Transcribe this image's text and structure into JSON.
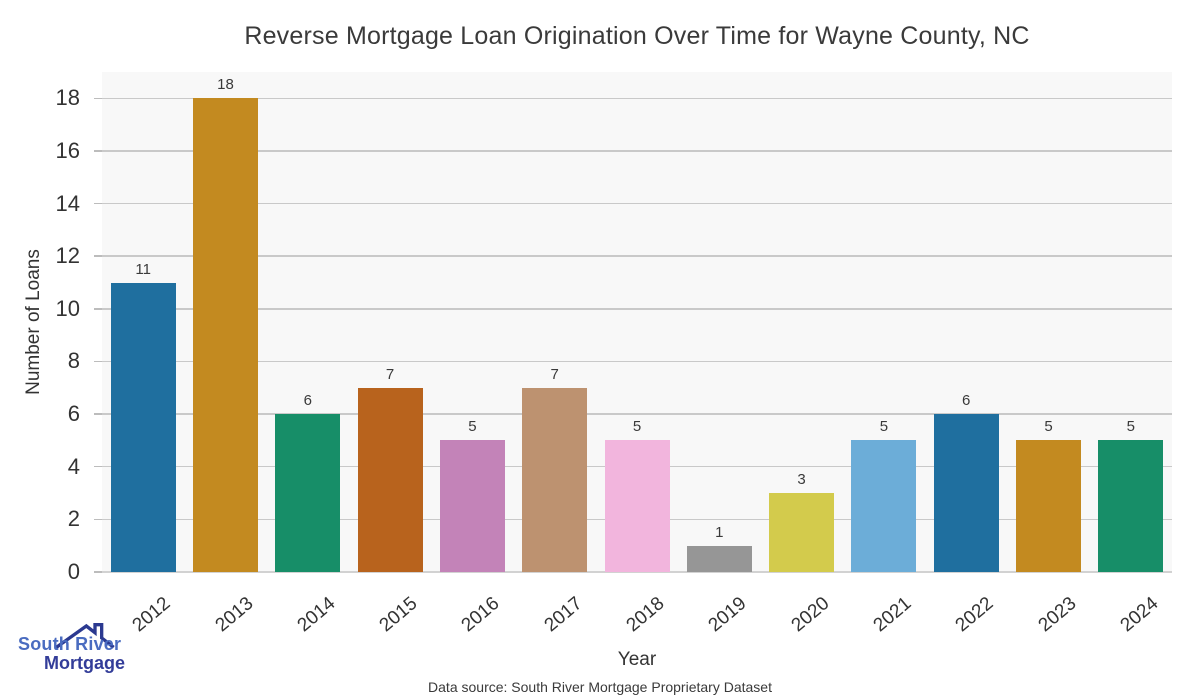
{
  "chart_data": {
    "type": "bar",
    "title": "Reverse Mortgage Loan Origination Over Time for Wayne County, NC",
    "xlabel": "Year",
    "ylabel": "Number of Loans",
    "categories": [
      "2012",
      "2013",
      "2014",
      "2015",
      "2016",
      "2017",
      "2018",
      "2019",
      "2020",
      "2021",
      "2022",
      "2023",
      "2024"
    ],
    "values": [
      11,
      18,
      6,
      7,
      5,
      7,
      5,
      1,
      3,
      5,
      6,
      5,
      5
    ],
    "bar_colors": [
      "#1f6f9f",
      "#c38a20",
      "#178e68",
      "#b8631d",
      "#c383b8",
      "#bd9270",
      "#f2b5dd",
      "#969696",
      "#d3cb4c",
      "#6cadd8",
      "#1f6f9f",
      "#c38a20",
      "#178e68"
    ],
    "ylim": [
      0,
      19
    ],
    "yticks": [
      0,
      2,
      4,
      6,
      8,
      10,
      12,
      14,
      16,
      18
    ],
    "grid": "horizontal",
    "legend": "none",
    "plot_background": "#f8f8f8",
    "grid_color": "#c9c9c9",
    "tick_label_color": "#333333",
    "bar_label_color": "#3a3a3a",
    "title_color": "#3a3a3a"
  },
  "footer": {
    "data_source": "Data source: South River Mortgage Proprietary Dataset"
  },
  "logo": {
    "line1": "South River",
    "line2": "Mortgage",
    "line1_color": "#4a6cc0",
    "line2_color": "#333d99",
    "roof_color": "#2b3990"
  }
}
